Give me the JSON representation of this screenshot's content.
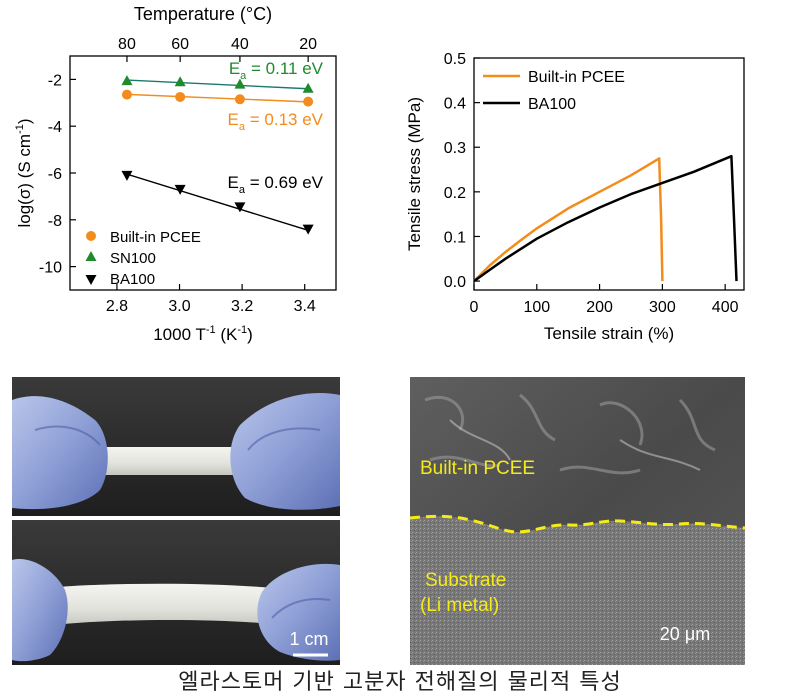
{
  "caption": "엘라스토머 기반 고분자 전해질의 물리적 특성",
  "colors": {
    "orange": "#f28c1c",
    "green": "#1f8a2e",
    "black": "#000000",
    "teal": "#1a7a6e",
    "yellow": "#f5ea1a"
  },
  "chart_data": [
    {
      "type": "scatter",
      "title": "",
      "xlabel": "1000 T⁻¹ (K⁻¹)",
      "xlabel_main": "1000 T",
      "xlabel_sup": "-1",
      "xlabel_unit": " (K",
      "xlabel_unit_sup": "-1",
      "xlabel_close": ")",
      "ylabel": "log(σ) (S cm⁻¹)",
      "ylabel_main": "log(σ) (S cm",
      "ylabel_sup": "-1",
      "ylabel_close": ")",
      "top_axis_label": "Temperature (°C)",
      "top_ticks": [
        {
          "label": "80",
          "x": 2.832
        },
        {
          "label": "60",
          "x": 3.002
        },
        {
          "label": "40",
          "x": 3.193
        },
        {
          "label": "20",
          "x": 3.411
        }
      ],
      "xlim": [
        2.65,
        3.5
      ],
      "ylim": [
        -11,
        -1
      ],
      "xticks": [
        2.8,
        3.0,
        3.2,
        3.4
      ],
      "xtick_labels": [
        "2.8",
        "3.0",
        "3.2",
        "3.4"
      ],
      "yticks": [
        -10,
        -8,
        -6,
        -4,
        -2
      ],
      "ytick_labels": [
        "-10",
        "-8",
        "-6",
        "-4",
        "-2"
      ],
      "legend_position": "bottom-left",
      "series": [
        {
          "name": "Built-in PCEE",
          "marker": "circle",
          "color": "#f28c1c",
          "x": [
            2.832,
            3.002,
            3.193,
            3.411
          ],
          "y": [
            -2.65,
            -2.75,
            -2.85,
            -2.95
          ],
          "fit": [
            [
              2.832,
              -2.64
            ],
            [
              3.411,
              -2.96
            ]
          ],
          "ea_label": "E",
          "ea_sub": "a",
          "ea_value": " = 0.13 eV"
        },
        {
          "name": "SN100",
          "marker": "triangle-up",
          "color": "#1f8a2e",
          "fit_color": "#1a7a6e",
          "x": [
            2.832,
            3.002,
            3.193,
            3.411
          ],
          "y": [
            -2.05,
            -2.1,
            -2.2,
            -2.38
          ],
          "fit": [
            [
              2.832,
              -2.03
            ],
            [
              3.411,
              -2.4
            ]
          ],
          "ea_label": "E",
          "ea_sub": "a",
          "ea_value": " = 0.11 eV"
        },
        {
          "name": "BA100",
          "marker": "triangle-down",
          "color": "#000000",
          "x": [
            2.832,
            3.002,
            3.193,
            3.411
          ],
          "y": [
            -6.1,
            -6.7,
            -7.45,
            -8.4
          ],
          "fit": [
            [
              2.832,
              -6.05
            ],
            [
              3.411,
              -8.45
            ]
          ],
          "ea_label": "E",
          "ea_sub": "a",
          "ea_value": " = 0.69 eV"
        }
      ]
    },
    {
      "type": "line",
      "title": "",
      "xlabel": "Tensile strain (%)",
      "ylabel": "Tensile stress (MPa)",
      "xlim": [
        0,
        430
      ],
      "ylim": [
        -0.02,
        0.5
      ],
      "xticks": [
        0,
        100,
        200,
        300,
        400
      ],
      "xtick_labels": [
        "0",
        "100",
        "200",
        "300",
        "400"
      ],
      "yticks": [
        0.0,
        0.1,
        0.2,
        0.3,
        0.4,
        0.5
      ],
      "ytick_labels": [
        "0.0",
        "0.1",
        "0.2",
        "0.3",
        "0.4",
        "0.5"
      ],
      "legend_position": "top-left",
      "series": [
        {
          "name": "Built-in PCEE",
          "color": "#f28c1c",
          "x": [
            0,
            25,
            50,
            75,
            100,
            150,
            200,
            250,
            295,
            298,
            300
          ],
          "y": [
            0,
            0.035,
            0.065,
            0.092,
            0.118,
            0.163,
            0.2,
            0.237,
            0.275,
            0.14,
            0.0
          ]
        },
        {
          "name": "BA100",
          "color": "#000000",
          "x": [
            0,
            25,
            50,
            100,
            150,
            200,
            250,
            300,
            350,
            410,
            414,
            418
          ],
          "y": [
            0,
            0.025,
            0.05,
            0.095,
            0.132,
            0.165,
            0.195,
            0.22,
            0.245,
            0.28,
            0.14,
            0.0
          ]
        }
      ]
    }
  ],
  "photos": {
    "scale_bar_label": "1 cm"
  },
  "sem": {
    "label_top": "Built-in PCEE",
    "label_bottom_1": "Substrate",
    "label_bottom_2": "(Li metal)",
    "scale_bar_label": "20 μm"
  }
}
